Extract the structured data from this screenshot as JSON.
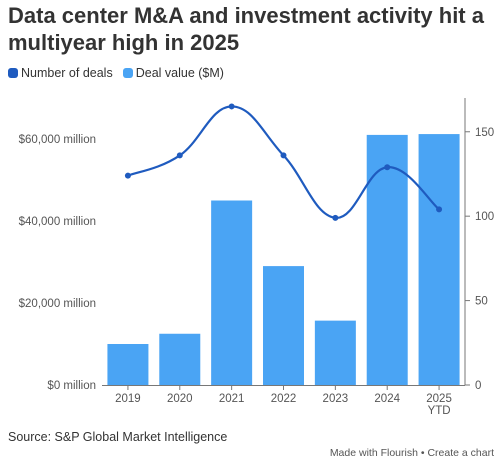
{
  "title": "Data center M&A and investment activity hit a multiyear high in 2025",
  "legend": [
    {
      "label": "Number of deals",
      "color": "#1f5bbf"
    },
    {
      "label": "Deal value ($M)",
      "color": "#4aa4f4"
    }
  ],
  "source": "Source: S&P Global Market Intelligence",
  "footer": {
    "made_with": "Made with Flourish",
    "separator": " • ",
    "create": "Create a chart"
  },
  "chart_data": {
    "type": "bar",
    "categories": [
      "2019",
      "2020",
      "2021",
      "2022",
      "2023",
      "2024",
      "2025 YTD"
    ],
    "category_lines": [
      [
        "2019"
      ],
      [
        "2020"
      ],
      [
        "2021"
      ],
      [
        "2022"
      ],
      [
        "2023"
      ],
      [
        "2024"
      ],
      [
        "2025",
        "YTD"
      ]
    ],
    "series": [
      {
        "name": "Deal value ($M)",
        "type": "bar",
        "axis": "left",
        "color": "#4aa4f4",
        "values": [
          10000,
          12500,
          45000,
          29000,
          15700,
          61000,
          61200
        ]
      },
      {
        "name": "Number of deals",
        "type": "line",
        "axis": "right",
        "color": "#1f5bbf",
        "values": [
          124,
          136,
          165,
          136,
          99,
          129,
          104
        ]
      }
    ],
    "left_axis": {
      "ylim": [
        0,
        70000
      ],
      "ticks": [
        0,
        20000,
        40000,
        60000
      ],
      "tick_labels": [
        "$0 million",
        "$20,000 million",
        "$40,000 million",
        "$60,000 million"
      ]
    },
    "right_axis": {
      "ylim": [
        0,
        170
      ],
      "ticks": [
        0,
        50,
        100,
        150
      ],
      "tick_labels": [
        "0",
        "50",
        "100",
        "150"
      ]
    },
    "grid": false,
    "legend_position": "top-left"
  }
}
